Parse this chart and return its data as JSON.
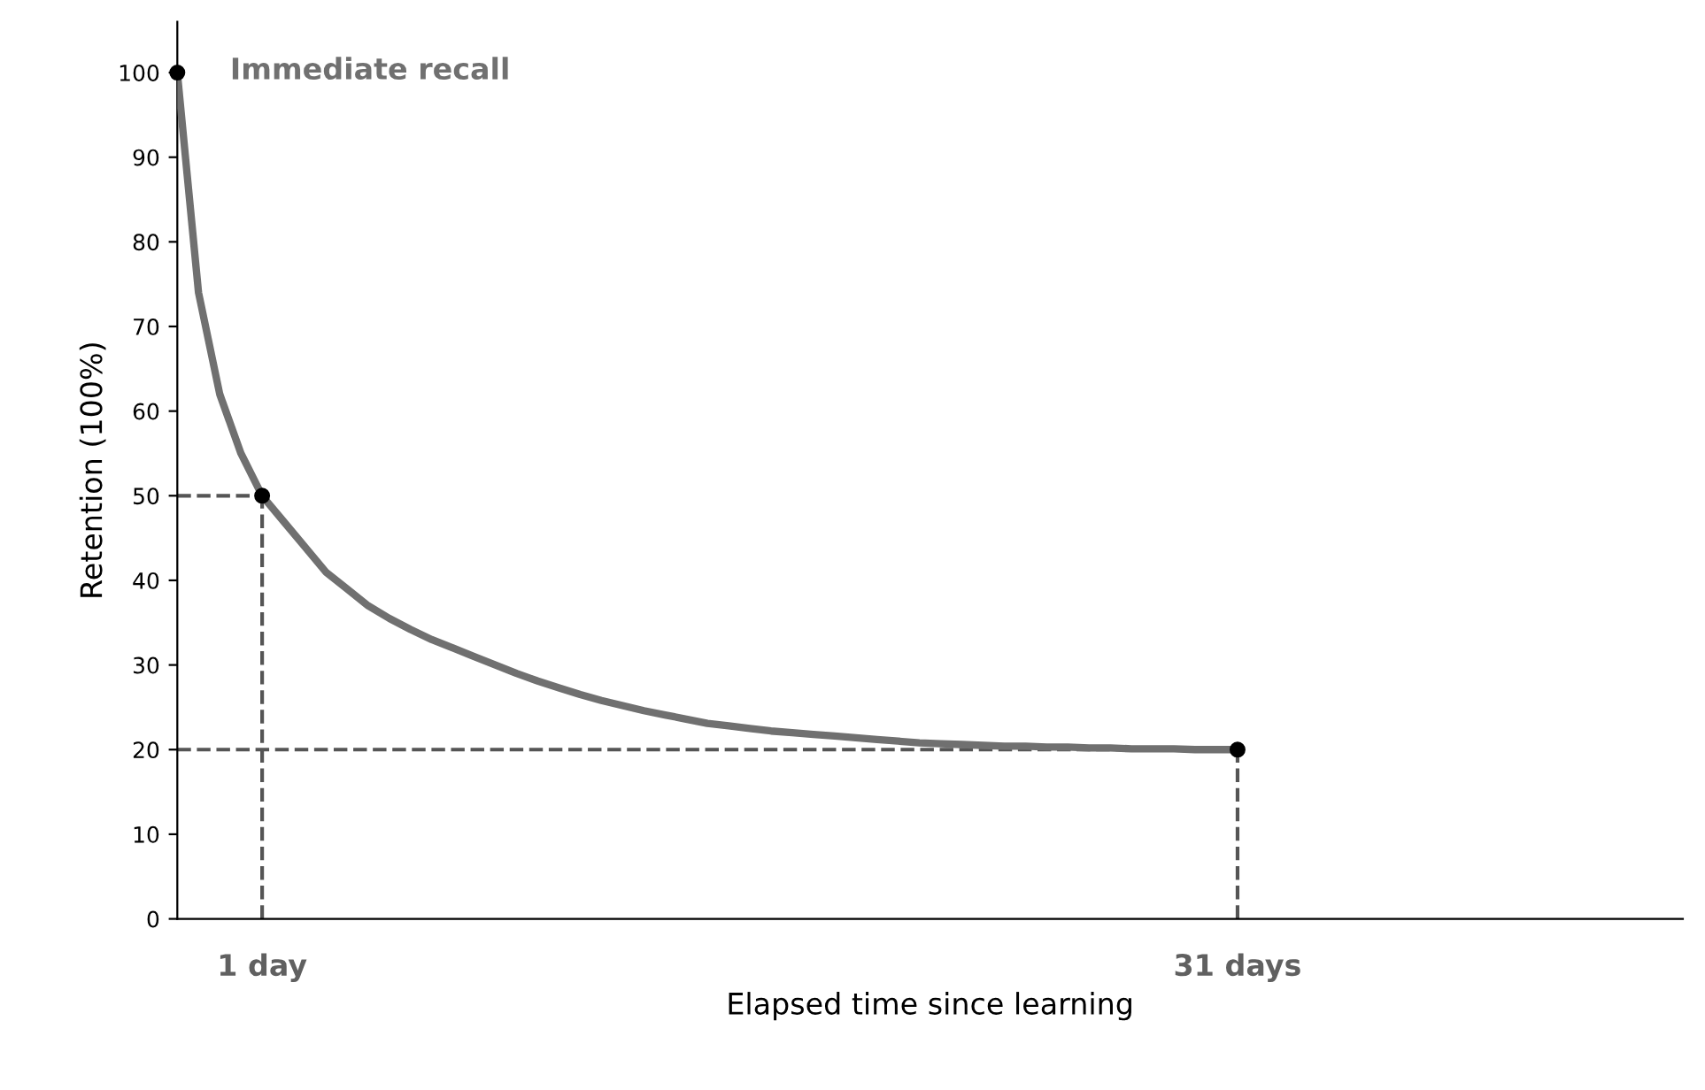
{
  "chart_data": {
    "type": "line",
    "xlabel": "Elapsed time since learning",
    "ylabel": "Retention (100%)",
    "categories": [
      null,
      null,
      null,
      null,
      "1 day",
      null,
      null,
      null,
      null,
      null,
      null,
      null,
      null,
      null,
      null,
      null,
      null,
      null,
      null,
      null,
      null,
      null,
      null,
      null,
      null,
      null,
      null,
      null,
      null,
      null,
      null,
      null,
      null,
      null,
      null,
      null,
      null,
      null,
      null,
      null,
      null,
      null,
      null,
      null,
      null,
      null,
      null,
      null,
      null,
      null,
      "31 days",
      null,
      null,
      null,
      null,
      null,
      null,
      null,
      null,
      null,
      null,
      null,
      null,
      null,
      null,
      null,
      null,
      null,
      null,
      null,
      null,
      null
    ],
    "series": [
      {
        "color": "#707070",
        "marker": "none",
        "values": [
          100,
          74,
          62,
          55,
          50,
          47,
          44,
          41,
          39,
          37,
          35.5,
          34.2,
          33,
          32,
          31,
          30,
          29,
          28.1,
          27.3,
          26.5,
          25.8,
          25.2,
          24.6,
          24.1,
          23.6,
          23.1,
          22.8,
          22.5,
          22.2,
          22.0,
          21.8,
          21.6,
          21.4,
          21.2,
          21.0,
          20.8,
          20.7,
          20.6,
          20.5,
          20.4,
          20.4,
          20.3,
          20.3,
          20.2,
          20.2,
          20.1,
          20.1,
          20.1,
          20.0,
          20.0,
          20,
          null,
          null,
          null,
          null,
          null,
          null,
          null,
          null,
          null,
          null,
          null,
          null,
          null,
          null,
          null,
          null,
          null,
          null,
          null,
          null,
          null
        ]
      },
      {
        "type": "scatter",
        "color": "#000000",
        "marker": "circle",
        "values": [
          100,
          null,
          null,
          null,
          50,
          null,
          null,
          null,
          null,
          null,
          null,
          null,
          null,
          null,
          null,
          null,
          null,
          null,
          null,
          null,
          null,
          null,
          null,
          null,
          null,
          null,
          null,
          null,
          null,
          null,
          null,
          null,
          null,
          null,
          null,
          null,
          null,
          null,
          null,
          null,
          null,
          null,
          null,
          null,
          null,
          null,
          null,
          null,
          null,
          null,
          20,
          null,
          null,
          null,
          null,
          null,
          null,
          null,
          null,
          null,
          null,
          null,
          null,
          null,
          null,
          null,
          null,
          null,
          null,
          null,
          null,
          null
        ]
      }
    ],
    "annotations": [
      "Immediate recall"
    ],
    "ylim": [
      0,
      106
    ],
    "yticks": [
      0,
      10,
      20,
      30,
      40,
      50,
      60,
      70,
      80,
      90,
      100
    ],
    "legend": false
  }
}
